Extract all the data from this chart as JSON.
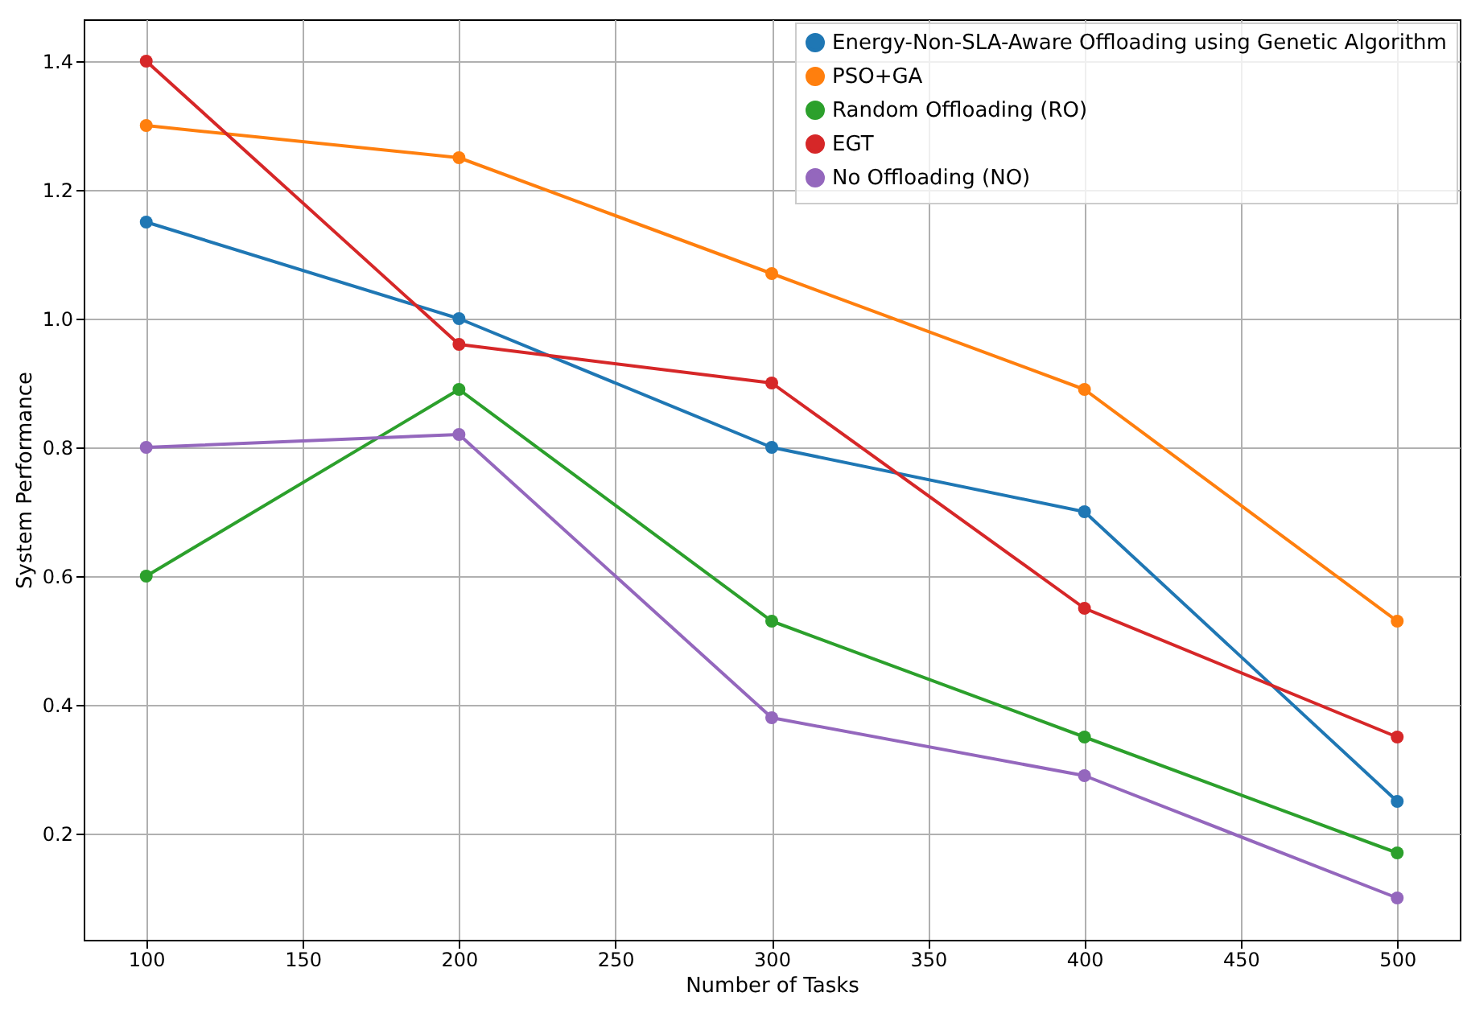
{
  "chart_data": {
    "type": "line",
    "xlabel": "Number of Tasks",
    "ylabel": "System Performance",
    "x": [
      100,
      200,
      300,
      400,
      500
    ],
    "series": [
      {
        "name": "Energy-Non-SLA-Aware Offloading using Genetic Algorithm",
        "color": "#1f77b4",
        "values": [
          1.15,
          1.0,
          0.8,
          0.7,
          0.25
        ]
      },
      {
        "name": "PSO+GA",
        "color": "#ff7f0e",
        "values": [
          1.3,
          1.25,
          1.07,
          0.89,
          0.53
        ]
      },
      {
        "name": "Random Offloading (RO)",
        "color": "#2ca02c",
        "values": [
          0.6,
          0.89,
          0.53,
          0.35,
          0.17
        ]
      },
      {
        "name": "EGT",
        "color": "#d62728",
        "values": [
          1.4,
          0.96,
          0.9,
          0.55,
          0.35
        ]
      },
      {
        "name": "No Offloading (NO)",
        "color": "#9467bd",
        "values": [
          0.8,
          0.82,
          0.38,
          0.29,
          0.1
        ]
      }
    ],
    "xlim": [
      80,
      520
    ],
    "xticks": [
      100,
      150,
      200,
      250,
      300,
      350,
      400,
      450,
      500
    ],
    "ylim": [
      0.035,
      1.465
    ],
    "yticks": [
      0.2,
      0.4,
      0.6,
      0.8,
      {
        "value": 1,
        "label": "1.0"
      },
      1.2,
      1.4
    ],
    "grid": true,
    "legend": "top right",
    "marker": "circle",
    "line_style": "solid"
  }
}
